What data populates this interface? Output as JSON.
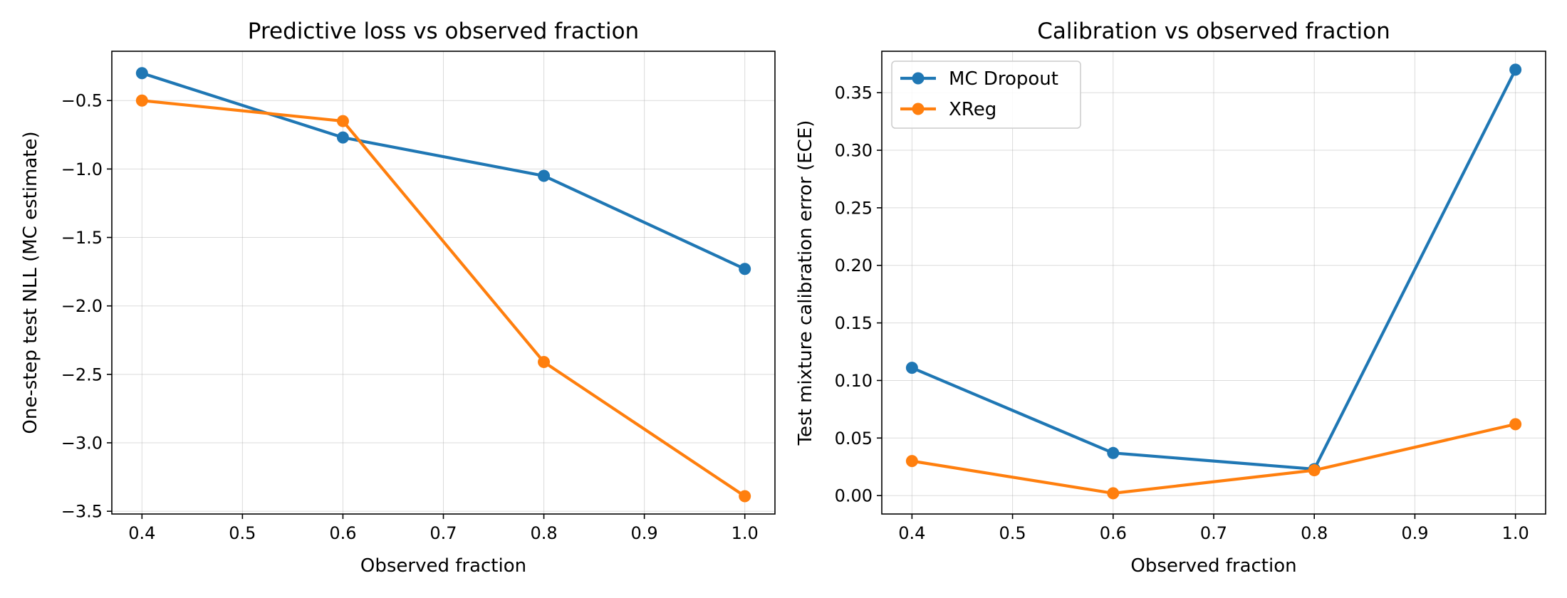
{
  "chart_data": [
    {
      "type": "line",
      "title": "Predictive loss vs observed fraction",
      "xlabel": "Observed fraction",
      "ylabel": "One-step test NLL (MC estimate)",
      "x": [
        0.4,
        0.6,
        0.8,
        1.0
      ],
      "xlim": [
        0.37,
        1.03
      ],
      "ylim": [
        -3.52,
        -0.14
      ],
      "xticks": [
        0.4,
        0.5,
        0.6,
        0.7,
        0.8,
        0.9,
        1.0
      ],
      "xtick_labels": [
        "0.4",
        "0.5",
        "0.6",
        "0.7",
        "0.8",
        "0.9",
        "1.0"
      ],
      "yticks": [
        -0.5,
        -1.0,
        -1.5,
        -2.0,
        -2.5,
        -3.0,
        -3.5
      ],
      "ytick_labels": [
        "−0.5",
        "−1.0",
        "−1.5",
        "−2.0",
        "−2.5",
        "−3.0",
        "−3.5"
      ],
      "grid": true,
      "legend": null,
      "series": [
        {
          "name": "MC Dropout",
          "color": "#1f77b4",
          "values": [
            -0.3,
            -0.77,
            -1.05,
            -1.73
          ]
        },
        {
          "name": "XReg",
          "color": "#ff7f0e",
          "values": [
            -0.5,
            -0.65,
            -2.41,
            -3.39
          ]
        }
      ]
    },
    {
      "type": "line",
      "title": "Calibration vs observed fraction",
      "xlabel": "Observed fraction",
      "ylabel": "Test mixture calibration error (ECE)",
      "x": [
        0.4,
        0.6,
        0.8,
        1.0
      ],
      "xlim": [
        0.37,
        1.03
      ],
      "ylim": [
        -0.016,
        0.386
      ],
      "xticks": [
        0.4,
        0.5,
        0.6,
        0.7,
        0.8,
        0.9,
        1.0
      ],
      "xtick_labels": [
        "0.4",
        "0.5",
        "0.6",
        "0.7",
        "0.8",
        "0.9",
        "1.0"
      ],
      "yticks": [
        0.0,
        0.05,
        0.1,
        0.15,
        0.2,
        0.25,
        0.3,
        0.35
      ],
      "ytick_labels": [
        "0.00",
        "0.05",
        "0.10",
        "0.15",
        "0.20",
        "0.25",
        "0.30",
        "0.35"
      ],
      "grid": true,
      "legend": "top-left",
      "series": [
        {
          "name": "MC Dropout",
          "color": "#1f77b4",
          "values": [
            0.111,
            0.037,
            0.023,
            0.37
          ]
        },
        {
          "name": "XReg",
          "color": "#ff7f0e",
          "values": [
            0.03,
            0.002,
            0.022,
            0.062
          ]
        }
      ]
    }
  ]
}
